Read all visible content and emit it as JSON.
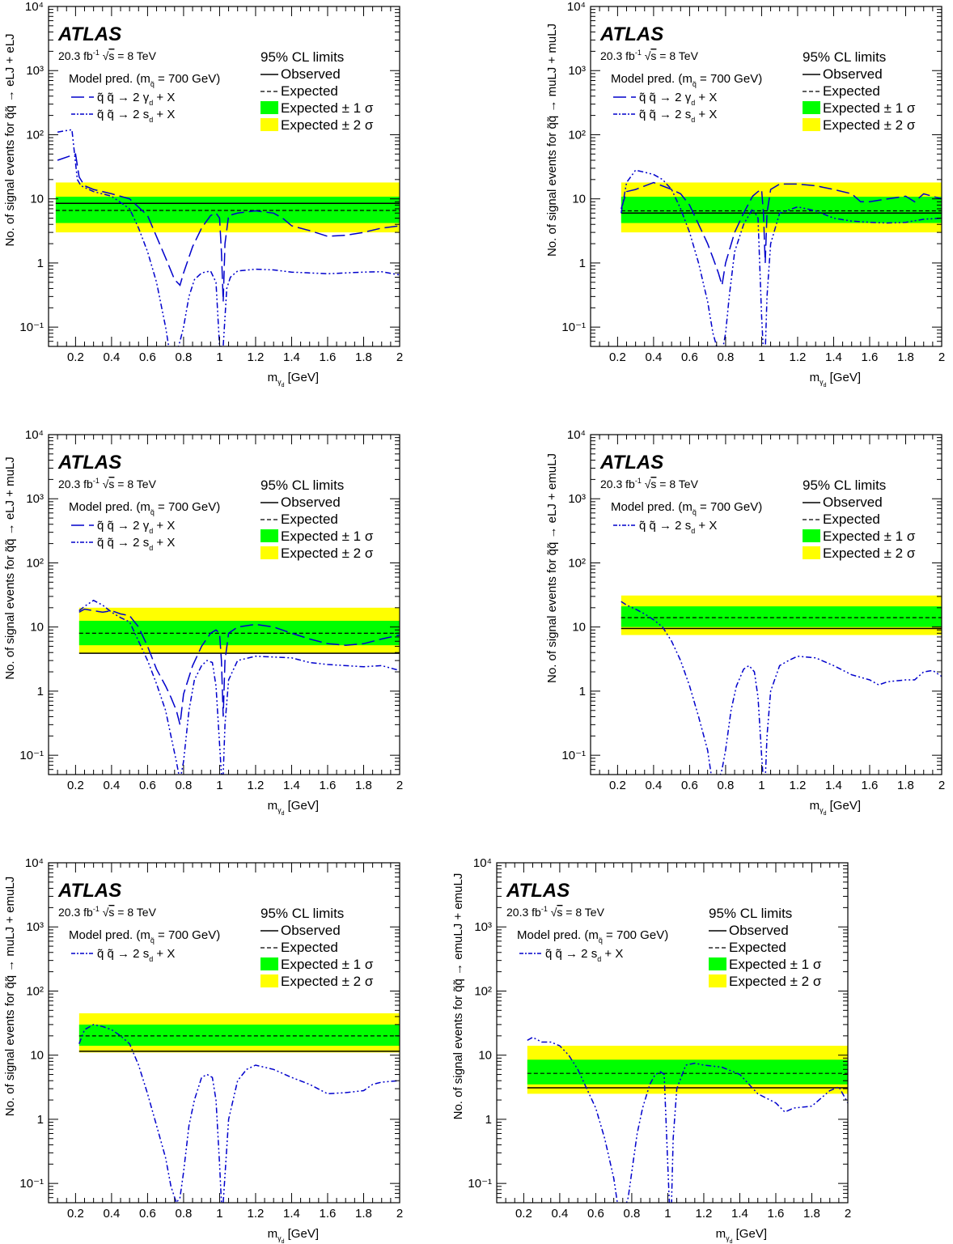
{
  "common": {
    "experiment": "ATLAS",
    "lumi_prefix": "20.3 fb",
    "lumi_exp": "-1",
    "sqrt_s": "s",
    "energy_suffix": " = 8 TeV",
    "cl_title": "95% CL limits",
    "legend_observed": "Observed",
    "legend_expected": "Expected",
    "legend_1sigma": "Expected ± 1 σ",
    "legend_2sigma": "Expected ± 2 σ",
    "model_pred_prefix": "Model pred. (m",
    "model_pred_suffix": " = 700 GeV)",
    "squark_sub": "q̃",
    "xlabel_main": "m",
    "xlabel_sub": "γ",
    "xlabel_subsub": "d",
    "xlabel_unit": " [GeV]",
    "ylabel_prefix": "No. of signal events for q̃q̃ → ",
    "proc_gamma_main": "q̃ q̃ → 2 γ",
    "proc_gamma_sub": "d",
    "proc_gamma_tail": " + X",
    "proc_sd_main": "q̃ q̃ → 2 s",
    "proc_sd_sub": "d",
    "proc_sd_tail": " + X",
    "colors": {
      "band1": "#00ff00",
      "band2": "#ffff00",
      "model": "#0000cc",
      "axis": "#000000"
    }
  },
  "chart_data": [
    {
      "type": "line",
      "channel": "eLJ + eLJ",
      "xlim": [
        0.05,
        2.0
      ],
      "ylim": [
        0.05,
        10000
      ],
      "yscale": "log",
      "xticks": [
        "0.2",
        "0.4",
        "0.6",
        "0.8",
        "1",
        "1.2",
        "1.4",
        "1.6",
        "1.8",
        "2"
      ],
      "yticks": [
        "10⁻¹",
        "1",
        "10",
        "10²",
        "10³",
        "10⁴"
      ],
      "limits": {
        "xrange": [
          0.09,
          2.0
        ],
        "observed": 8.5,
        "expected": 6.6,
        "one_sigma": [
          4.2,
          10.8
        ],
        "two_sigma": [
          3.0,
          18.0
        ]
      },
      "series": [
        {
          "style": "dashed",
          "x": [
            0.1,
            0.2,
            0.22,
            0.25,
            0.3,
            0.4,
            0.5,
            0.6,
            0.7,
            0.75,
            0.78,
            0.8,
            0.85,
            0.9,
            0.95,
            0.98,
            1.0,
            1.01,
            1.02,
            1.03,
            1.05,
            1.1,
            1.2,
            1.3,
            1.35,
            1.4,
            1.5,
            1.6,
            1.7,
            1.8,
            1.9,
            2.0
          ],
          "y": [
            40,
            50,
            22,
            16,
            14,
            12,
            10,
            5.5,
            1.2,
            0.55,
            0.45,
            0.7,
            1.8,
            3.5,
            5.5,
            6,
            5,
            1.5,
            0.25,
            2,
            5.5,
            6,
            6.5,
            6,
            5,
            3.8,
            3.2,
            2.6,
            2.7,
            3,
            3.5,
            3.8
          ]
        },
        {
          "style": "dashdot",
          "x": [
            0.1,
            0.18,
            0.21,
            0.23,
            0.3,
            0.4,
            0.5,
            0.55,
            0.6,
            0.65,
            0.7,
            0.72,
            0.74,
            0.76,
            0.78,
            0.8,
            0.83,
            0.86,
            0.9,
            0.95,
            0.98,
            1.0,
            1.02,
            1.04,
            1.06,
            1.1,
            1.2,
            1.3,
            1.4,
            1.5,
            1.6,
            1.7,
            1.8,
            1.9,
            2.0
          ],
          "y": [
            110,
            120,
            20,
            16,
            13,
            11,
            7,
            3.5,
            1.5,
            0.5,
            0.1,
            0.045,
            0.03,
            0.04,
            0.06,
            0.1,
            0.3,
            0.55,
            0.7,
            0.75,
            0.5,
            0.05,
            0.05,
            0.4,
            0.6,
            0.75,
            0.8,
            0.78,
            0.72,
            0.7,
            0.68,
            0.7,
            0.72,
            0.73,
            0.65
          ]
        }
      ]
    },
    {
      "type": "line",
      "channel": "muLJ + muLJ",
      "xlim": [
        0.05,
        2.0
      ],
      "ylim": [
        0.05,
        10000
      ],
      "yscale": "log",
      "xticks": [
        "0.2",
        "0.4",
        "0.6",
        "0.8",
        "1",
        "1.2",
        "1.4",
        "1.6",
        "1.8",
        "2"
      ],
      "yticks": [
        "10⁻¹",
        "1",
        "10",
        "10²",
        "10³",
        "10⁴"
      ],
      "limits": {
        "xrange": [
          0.22,
          2.0
        ],
        "observed": 6.0,
        "expected": 6.5,
        "one_sigma": [
          4.2,
          10.8
        ],
        "two_sigma": [
          3.0,
          18.0
        ]
      },
      "series": [
        {
          "style": "dashed",
          "x": [
            0.22,
            0.25,
            0.3,
            0.4,
            0.5,
            0.55,
            0.6,
            0.65,
            0.7,
            0.73,
            0.76,
            0.78,
            0.8,
            0.85,
            0.9,
            0.95,
            0.98,
            1.0,
            1.01,
            1.02,
            1.03,
            1.05,
            1.1,
            1.2,
            1.3,
            1.4,
            1.5,
            1.55,
            1.6,
            1.7,
            1.8,
            1.85,
            1.9,
            2.0
          ],
          "y": [
            7,
            13,
            14,
            18,
            14,
            12,
            8,
            4,
            2,
            1.2,
            0.7,
            0.45,
            1,
            3,
            6,
            11,
            13,
            14,
            6,
            1,
            6,
            14,
            17,
            17,
            16,
            14,
            12,
            9,
            9,
            10,
            11,
            9,
            12,
            10
          ]
        },
        {
          "style": "dashdot",
          "x": [
            0.22,
            0.25,
            0.3,
            0.35,
            0.4,
            0.45,
            0.5,
            0.55,
            0.6,
            0.65,
            0.7,
            0.73,
            0.76,
            0.78,
            0.8,
            0.82,
            0.85,
            0.9,
            0.95,
            0.98,
            1.0,
            1.01,
            1.02,
            1.03,
            1.05,
            1.1,
            1.2,
            1.3,
            1.4,
            1.5,
            1.6,
            1.7,
            1.8,
            1.9,
            2.0
          ],
          "y": [
            6,
            18,
            28,
            26,
            24,
            20,
            14,
            7,
            3,
            1,
            0.25,
            0.08,
            0.04,
            0.04,
            0.08,
            0.3,
            1.5,
            4,
            7,
            5,
            0.15,
            0.04,
            0.04,
            0.3,
            2,
            6,
            7.5,
            6.5,
            5,
            4.5,
            4.3,
            4.2,
            4.3,
            4.8,
            5
          ]
        }
      ]
    },
    {
      "type": "line",
      "channel": "eLJ + muLJ",
      "xlim": [
        0.05,
        2.0
      ],
      "ylim": [
        0.05,
        10000
      ],
      "yscale": "log",
      "xticks": [
        "0.2",
        "0.4",
        "0.6",
        "0.8",
        "1",
        "1.2",
        "1.4",
        "1.6",
        "1.8",
        "2"
      ],
      "yticks": [
        "10⁻¹",
        "1",
        "10",
        "10²",
        "10³",
        "10⁴"
      ],
      "limits": {
        "xrange": [
          0.22,
          2.0
        ],
        "observed": 3.9,
        "expected": 8.0,
        "one_sigma": [
          5.2,
          12.5
        ],
        "two_sigma": [
          3.9,
          20.0
        ]
      },
      "series": [
        {
          "style": "dashed",
          "x": [
            0.22,
            0.25,
            0.3,
            0.35,
            0.4,
            0.45,
            0.5,
            0.55,
            0.6,
            0.65,
            0.7,
            0.73,
            0.76,
            0.78,
            0.8,
            0.85,
            0.9,
            0.95,
            0.98,
            1.0,
            1.01,
            1.02,
            1.03,
            1.05,
            1.1,
            1.2,
            1.3,
            1.4,
            1.5,
            1.6,
            1.7,
            1.8,
            1.9,
            2.0
          ],
          "y": [
            17,
            19,
            18,
            17,
            18,
            16,
            15,
            10,
            5,
            2.2,
            1.2,
            0.8,
            0.5,
            0.3,
            0.9,
            2.5,
            5,
            8,
            9,
            8,
            3,
            0.4,
            3,
            8,
            10,
            11,
            10,
            8,
            6.5,
            5.5,
            5.2,
            5.5,
            6.5,
            7.5
          ]
        },
        {
          "style": "dashdot",
          "x": [
            0.22,
            0.25,
            0.3,
            0.35,
            0.4,
            0.45,
            0.5,
            0.55,
            0.6,
            0.65,
            0.7,
            0.73,
            0.76,
            0.78,
            0.8,
            0.83,
            0.86,
            0.9,
            0.93,
            0.96,
            0.98,
            1.0,
            1.01,
            1.02,
            1.03,
            1.05,
            1.1,
            1.2,
            1.3,
            1.4,
            1.5,
            1.6,
            1.7,
            1.8,
            1.9,
            2.0
          ],
          "y": [
            18,
            21,
            26,
            22,
            17,
            14,
            12,
            6,
            3,
            1.3,
            0.5,
            0.2,
            0.08,
            0.04,
            0.08,
            0.5,
            1.5,
            2.5,
            3,
            2.8,
            1.2,
            0.15,
            0.05,
            0.05,
            0.3,
            1.5,
            3,
            3.5,
            3.4,
            3.3,
            2.8,
            2.6,
            2.5,
            2.4,
            2.5,
            2.1
          ]
        }
      ]
    },
    {
      "type": "line",
      "channel": "eLJ + emuLJ",
      "xlim": [
        0.05,
        2.0
      ],
      "ylim": [
        0.05,
        10000
      ],
      "yscale": "log",
      "xticks": [
        "0.2",
        "0.4",
        "0.6",
        "0.8",
        "1",
        "1.2",
        "1.4",
        "1.6",
        "1.8",
        "2"
      ],
      "yticks": [
        "10⁻¹",
        "1",
        "10",
        "10²",
        "10³",
        "10⁴"
      ],
      "limits": {
        "xrange": [
          0.22,
          2.0
        ],
        "observed": 9.5,
        "expected": 14.0,
        "one_sigma": [
          10.0,
          21.0
        ],
        "two_sigma": [
          7.5,
          31.0
        ]
      },
      "series": [
        {
          "style": "dashdot",
          "x": [
            0.22,
            0.25,
            0.3,
            0.35,
            0.4,
            0.45,
            0.5,
            0.55,
            0.6,
            0.65,
            0.7,
            0.72,
            0.74,
            0.76,
            0.78,
            0.8,
            0.83,
            0.86,
            0.9,
            0.93,
            0.96,
            0.98,
            1.0,
            1.01,
            1.02,
            1.03,
            1.05,
            1.1,
            1.15,
            1.2,
            1.3,
            1.4,
            1.5,
            1.6,
            1.65,
            1.7,
            1.8,
            1.85,
            1.9,
            1.95,
            2.0
          ],
          "y": [
            25,
            22,
            19,
            16,
            13,
            10,
            6,
            3,
            1.2,
            0.4,
            0.12,
            0.05,
            0.03,
            0.04,
            0.06,
            0.12,
            0.5,
            1.2,
            2.2,
            2.5,
            2,
            0.8,
            0.1,
            0.04,
            0.04,
            0.2,
            1,
            2.5,
            3,
            3.5,
            3.3,
            2.5,
            1.8,
            1.5,
            1.25,
            1.4,
            1.5,
            1.5,
            2,
            2.1,
            1.7
          ]
        }
      ]
    },
    {
      "type": "line",
      "channel": "muLJ + emuLJ",
      "xlim": [
        0.05,
        2.0
      ],
      "ylim": [
        0.05,
        10000
      ],
      "yscale": "log",
      "xticks": [
        "0.2",
        "0.4",
        "0.6",
        "0.8",
        "1",
        "1.2",
        "1.4",
        "1.6",
        "1.8",
        "2"
      ],
      "yticks": [
        "10⁻¹",
        "1",
        "10",
        "10²",
        "10³",
        "10⁴"
      ],
      "limits": {
        "xrange": [
          0.22,
          2.0
        ],
        "observed": 11.5,
        "expected": 20.0,
        "one_sigma": [
          14.0,
          30.0
        ],
        "two_sigma": [
          11.0,
          45.0
        ]
      },
      "series": [
        {
          "style": "dashdot",
          "x": [
            0.22,
            0.25,
            0.3,
            0.35,
            0.4,
            0.45,
            0.5,
            0.55,
            0.6,
            0.65,
            0.7,
            0.73,
            0.76,
            0.78,
            0.8,
            0.83,
            0.86,
            0.9,
            0.93,
            0.96,
            0.98,
            1.0,
            1.01,
            1.02,
            1.05,
            1.1,
            1.15,
            1.2,
            1.3,
            1.4,
            1.5,
            1.6,
            1.7,
            1.8,
            1.85,
            1.9,
            2.0
          ],
          "y": [
            15,
            25,
            30,
            28,
            25,
            20,
            15,
            7,
            2.5,
            0.8,
            0.25,
            0.09,
            0.05,
            0.06,
            0.15,
            0.8,
            2,
            4.5,
            5,
            4.5,
            2,
            0.2,
            0.05,
            0.05,
            1,
            4,
            6,
            7,
            6,
            4.5,
            3.5,
            2.5,
            2.6,
            2.8,
            3.5,
            3.8,
            4
          ]
        }
      ]
    },
    {
      "type": "line",
      "channel": "emuLJ + emuLJ",
      "xlim": [
        0.05,
        2.0
      ],
      "ylim": [
        0.05,
        10000
      ],
      "yscale": "log",
      "xticks": [
        "0.2",
        "0.4",
        "0.6",
        "0.8",
        "1",
        "1.2",
        "1.4",
        "1.6",
        "1.8",
        "2"
      ],
      "yticks": [
        "10⁻¹",
        "1",
        "10",
        "10²",
        "10³",
        "10⁴"
      ],
      "limits": {
        "xrange": [
          0.22,
          2.0
        ],
        "observed": 3.1,
        "expected": 5.2,
        "one_sigma": [
          3.5,
          8.5
        ],
        "two_sigma": [
          2.5,
          14.0
        ]
      },
      "series": [
        {
          "style": "dashdot",
          "x": [
            0.22,
            0.25,
            0.3,
            0.35,
            0.4,
            0.45,
            0.5,
            0.55,
            0.6,
            0.65,
            0.7,
            0.72,
            0.74,
            0.76,
            0.78,
            0.8,
            0.83,
            0.86,
            0.9,
            0.93,
            0.96,
            0.98,
            1.0,
            1.01,
            1.02,
            1.03,
            1.05,
            1.1,
            1.15,
            1.2,
            1.3,
            1.4,
            1.5,
            1.6,
            1.65,
            1.7,
            1.8,
            1.9,
            1.95,
            2.0
          ],
          "y": [
            17,
            19,
            16,
            16,
            14,
            10,
            6,
            3,
            1.5,
            0.5,
            0.12,
            0.05,
            0.03,
            0.04,
            0.06,
            0.15,
            0.6,
            1.5,
            3.5,
            5,
            5.5,
            5,
            0.2,
            0.04,
            0.04,
            0.5,
            3,
            7,
            7.5,
            7,
            6.5,
            5,
            2.5,
            1.8,
            1.3,
            1.5,
            1.6,
            2.8,
            3.2,
            1.8
          ]
        }
      ]
    }
  ]
}
